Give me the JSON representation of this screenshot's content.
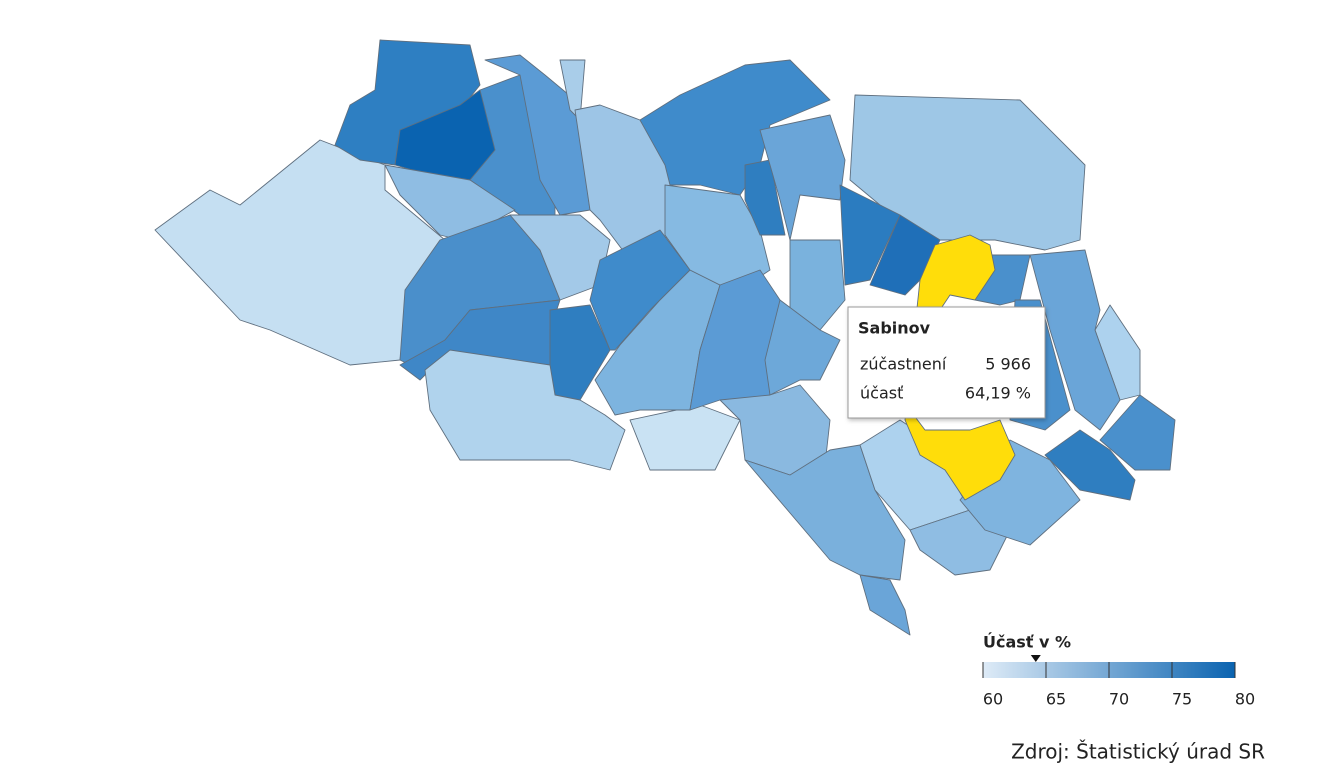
{
  "legend": {
    "title": "Účasť v %",
    "range": [
      60,
      80
    ],
    "ticks": [
      60,
      65,
      70,
      75,
      80
    ],
    "colors": [
      "#deebf7",
      "#0a63b0"
    ]
  },
  "tooltip": {
    "name": "Sabinov",
    "rows": [
      {
        "label": "zúčastnení",
        "value": 5966,
        "value_label": "5 966"
      },
      {
        "label": "účasť",
        "value": 64.19,
        "value_label": "64,19 %"
      }
    ]
  },
  "highlight_color": "#ffdd0a",
  "source": "Zdroj: Štatistický úrad SR"
}
